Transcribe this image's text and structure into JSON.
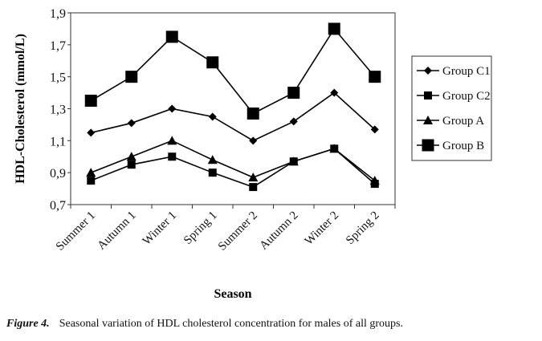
{
  "chart_data": {
    "type": "line",
    "xlabel": "Season",
    "ylabel": "HDL-Cholesterol (mmol/L)",
    "ylim": [
      0.7,
      1.9
    ],
    "yticks": [
      "0,7",
      "0,9",
      "1,1",
      "1,3",
      "1,5",
      "1,7",
      "1,9"
    ],
    "grid": false,
    "legend_position": "right",
    "categories": [
      "Summer 1",
      "Autumn 1",
      "Winter 1",
      "Spring 1",
      "Summer 2",
      "Autumn 2",
      "Winter 2",
      "Spring 2"
    ],
    "series": [
      {
        "name": "Group C1",
        "marker": "diamond",
        "values": [
          1.15,
          1.21,
          1.3,
          1.25,
          1.1,
          1.22,
          1.4,
          1.17
        ]
      },
      {
        "name": "Group C2",
        "marker": "square-small",
        "values": [
          0.85,
          0.95,
          1.0,
          0.9,
          0.81,
          0.97,
          1.05,
          0.83
        ]
      },
      {
        "name": "Group A",
        "marker": "triangle",
        "values": [
          0.9,
          1.0,
          1.1,
          0.98,
          0.87,
          0.97,
          1.05,
          0.85
        ]
      },
      {
        "name": "Group B",
        "marker": "square-large",
        "values": [
          1.35,
          1.5,
          1.75,
          1.59,
          1.27,
          1.4,
          1.8,
          1.5
        ]
      }
    ]
  },
  "caption": {
    "label": "Figure 4.",
    "text": "Seasonal variation of HDL cholesterol concentration for males of all groups."
  }
}
